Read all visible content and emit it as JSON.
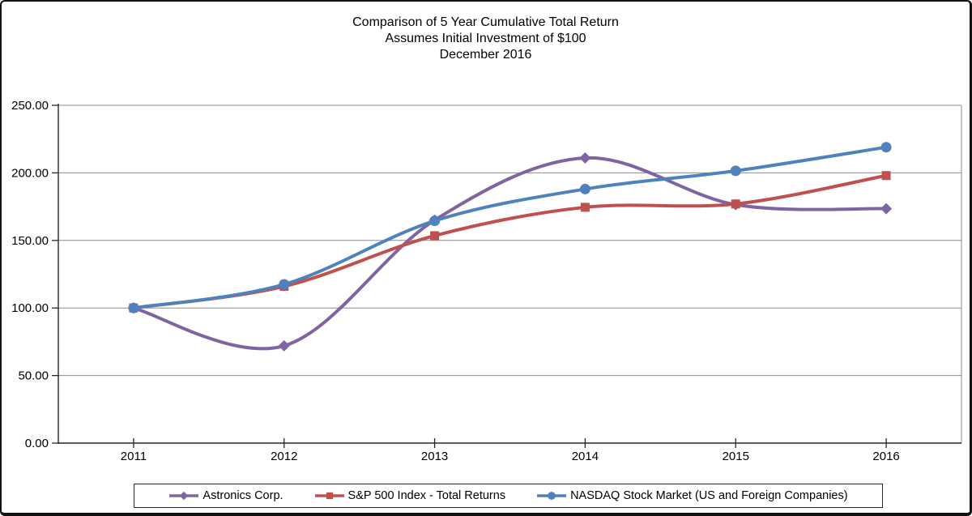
{
  "title": {
    "line1": "Comparison of 5 Year Cumulative Total Return",
    "line2": "Assumes Initial Investment of $100",
    "line3": "December 2016"
  },
  "chart_data": {
    "type": "line",
    "smooth": true,
    "grid": true,
    "legend_position": "bottom",
    "categories": [
      "2011",
      "2012",
      "2013",
      "2014",
      "2015",
      "2016"
    ],
    "series": [
      {
        "name": "Astronics Corp.",
        "marker": "diamond",
        "color": "#8064A2",
        "values": [
          100.0,
          72.0,
          165.0,
          211.0,
          176.5,
          173.5
        ]
      },
      {
        "name": "S&P 500 Index - Total Returns",
        "marker": "square",
        "color": "#C0504D",
        "values": [
          100.0,
          116.0,
          153.5,
          174.5,
          177.0,
          198.0
        ]
      },
      {
        "name": "NASDAQ Stock Market (US and Foreign Companies)",
        "marker": "circle",
        "color": "#4F81BD",
        "values": [
          100.0,
          117.5,
          164.5,
          188.0,
          201.5,
          219.0
        ]
      }
    ],
    "ylim": [
      0,
      250
    ],
    "y_ticks": [
      "0.00",
      "50.00",
      "100.00",
      "150.00",
      "200.00",
      "250.00"
    ],
    "xlabel": "",
    "ylabel": ""
  },
  "colors": {
    "gridline": "#8C8C8C",
    "axis": "#262626",
    "tick_text": "#000000",
    "plot_border": "#8C8C8C",
    "background": "#FFFFFF",
    "outer_border": "#111111"
  }
}
